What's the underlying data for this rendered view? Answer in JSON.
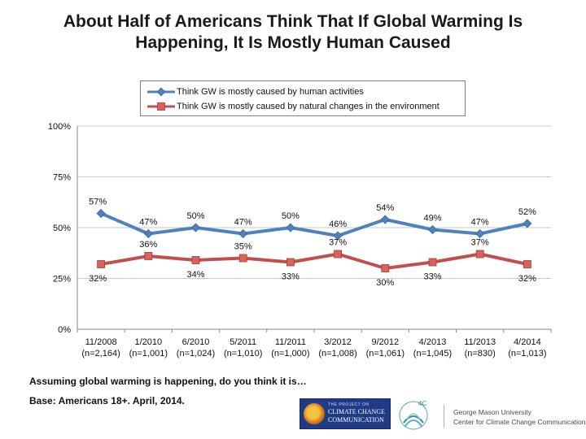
{
  "title_lines": [
    "About Half of Americans Think That If Global Warming Is",
    "Happening, It Is Mostly Human Caused"
  ],
  "question": "Assuming global warming is happening, do you think it is…",
  "base": "Base: Americans 18+. April, 2014.",
  "logos": {
    "ycc_line1": "THE PROJECT ON",
    "ycc_line2": "CLIMATE CHANGE",
    "ycc_line3": "COMMUNICATION",
    "fourc": "4C",
    "gmu_line1": "George Mason University",
    "gmu_line2": "Center for Climate Change Communication"
  },
  "colors": {
    "series_human": "#4f81bd",
    "series_natural": "#c0504d",
    "grid": "#c8c8c8",
    "axis": "#888888"
  },
  "chart_data": {
    "type": "line",
    "title": "About Half of Americans Think That If Global Warming Is Happening, It Is Mostly Human Caused",
    "categories": [
      [
        "11/2008",
        "(n=2,164)"
      ],
      [
        "1/2010",
        "(n=1,001)"
      ],
      [
        "6/2010",
        "(n=1,024)"
      ],
      [
        "5/2011",
        "(n=1,010)"
      ],
      [
        "11/2011",
        "(n=1,000)"
      ],
      [
        "3/2012",
        "(n=1,008)"
      ],
      [
        "9/2012",
        "(n=1,061)"
      ],
      [
        "4/2013",
        "(n=1,045)"
      ],
      [
        "11/2013",
        "(n=830)"
      ],
      [
        "4/2014",
        "(n=1,013)"
      ]
    ],
    "series": [
      {
        "name": "Think GW is mostly caused by human activities",
        "values": [
          57,
          47,
          50,
          47,
          50,
          46,
          54,
          49,
          47,
          52
        ],
        "labels": [
          "57%",
          "47%",
          "50%",
          "47%",
          "50%",
          "46%",
          "54%",
          "49%",
          "47%",
          "52%"
        ],
        "label_pos": "above",
        "marker": "diamond",
        "color": "#4f81bd"
      },
      {
        "name": "Think GW is mostly caused by natural changes in the environment",
        "values": [
          32,
          36,
          34,
          35,
          33,
          37,
          30,
          33,
          37,
          32
        ],
        "labels": [
          "32%",
          "36%",
          "34%",
          "35%",
          "33%",
          "37%",
          "30%",
          "33%",
          "37%",
          "32%"
        ],
        "label_pos_list": [
          "below",
          "above",
          "below",
          "above",
          "below",
          "above",
          "below",
          "below",
          "above",
          "below"
        ],
        "marker": "square",
        "color": "#c0504d"
      }
    ],
    "ylim": [
      0,
      100
    ],
    "yticks": [
      "0%",
      "25%",
      "50%",
      "75%",
      "100%"
    ],
    "ytick_values": [
      0,
      25,
      50,
      75,
      100
    ],
    "grid": true,
    "legend": "top-center"
  }
}
